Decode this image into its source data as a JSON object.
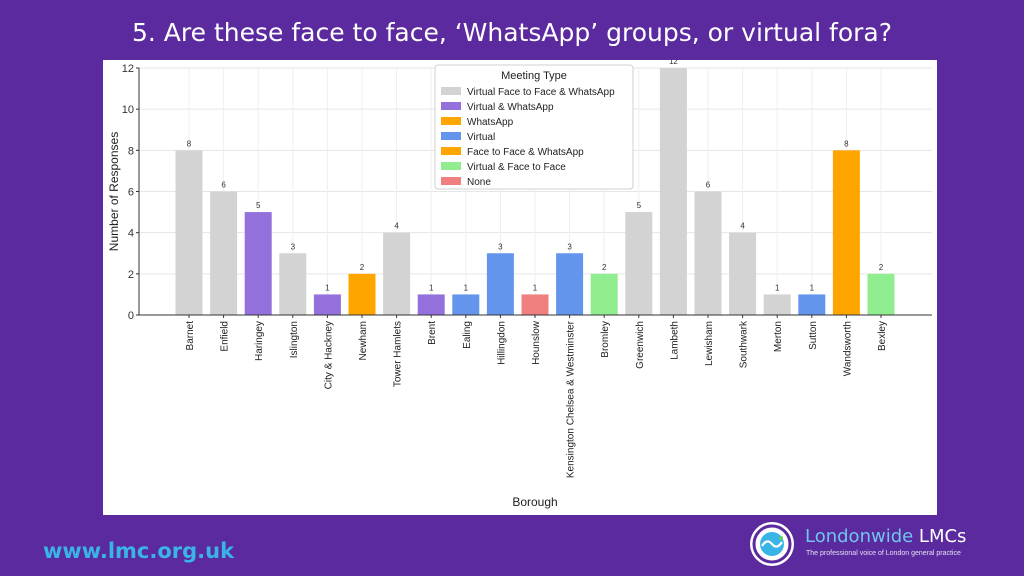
{
  "slide": {
    "title": "5. Are these face to face, ‘WhatsApp’ groups, or virtual fora?",
    "footer_url": "www.lmc.org.uk",
    "logo": {
      "name_part1": "Londonwide",
      "name_part2": " LMCs",
      "tagline": "The professional voice of London general practice"
    }
  },
  "colors": {
    "Virtual Face to Face & WhatsApp": "#d3d3d3",
    "Virtual & WhatsApp": "#9370db",
    "WhatsApp": "#ffa500",
    "Virtual": "#6495ed",
    "Face to Face & WhatsApp": "#ffa500",
    "Virtual & Face to Face": "#90ee90",
    "None": "#f08080"
  },
  "chart_data": {
    "type": "bar",
    "title": "",
    "xlabel": "Borough",
    "ylabel": "Number of Responses",
    "ylim": [
      0,
      12
    ],
    "yticks": [
      0,
      2,
      4,
      6,
      8,
      10,
      12
    ],
    "grid": true,
    "legend_title": "Meeting Type",
    "legend_position": "top-center",
    "legend": [
      "Virtual Face to Face & WhatsApp",
      "Virtual & WhatsApp",
      "WhatsApp",
      "Virtual",
      "Face to Face & WhatsApp",
      "Virtual & Face to Face",
      "None"
    ],
    "categories": [
      "Barnet",
      "Enfield",
      "Haringey",
      "Islington",
      "City & Hackney",
      "Newham",
      "Tower Hamlets",
      "Brent",
      "Ealing",
      "Hillingdon",
      "Hounslow",
      "Kensington Chelsea & Westminster",
      "Bromley",
      "Greenwich",
      "Lambeth",
      "Lewisham",
      "Southwark",
      "Merton",
      "Sutton",
      "Wandsworth",
      "Bexley"
    ],
    "values": [
      8,
      6,
      5,
      3,
      1,
      2,
      4,
      1,
      1,
      3,
      1,
      3,
      2,
      5,
      12,
      6,
      4,
      1,
      1,
      8,
      2
    ],
    "types": [
      "Virtual Face to Face & WhatsApp",
      "Virtual Face to Face & WhatsApp",
      "Virtual & WhatsApp",
      "Virtual Face to Face & WhatsApp",
      "Virtual & WhatsApp",
      "WhatsApp",
      "Virtual Face to Face & WhatsApp",
      "Virtual & WhatsApp",
      "Virtual",
      "Virtual",
      "None",
      "Virtual",
      "Virtual & Face to Face",
      "Virtual Face to Face & WhatsApp",
      "Virtual Face to Face & WhatsApp",
      "Virtual Face to Face & WhatsApp",
      "Virtual Face to Face & WhatsApp",
      "Virtual Face to Face & WhatsApp",
      "Virtual",
      "Face to Face & WhatsApp",
      "Virtual & Face to Face"
    ]
  }
}
